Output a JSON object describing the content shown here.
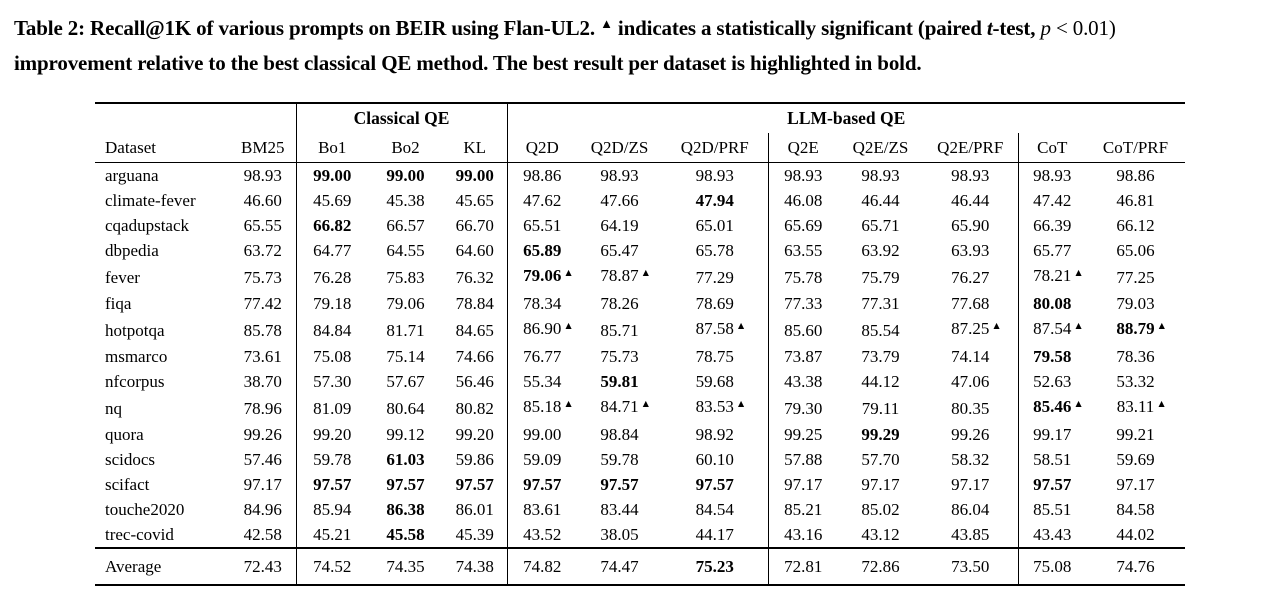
{
  "caption": {
    "parts": [
      {
        "t": "Table 2: Recall@1K of various prompts on BEIR using Flan-UL2. "
      },
      {
        "t": "▲",
        "s": "sup",
        "icon": "significance-triangle-icon"
      },
      {
        "t": " indicates a statistically significant (paired "
      },
      {
        "t": "t",
        "s": "it"
      },
      {
        "t": "-test, "
      },
      {
        "t": "p",
        "s": "it nm"
      },
      {
        "t": " < 0.01)",
        "s": "nm"
      },
      {
        "br": true
      },
      {
        "t": "improvement relative to the best classical QE method. The best result per dataset is highlighted in bold."
      }
    ]
  },
  "table": {
    "significance_marker": "▲",
    "group_headers": [
      {
        "label": "",
        "span": 2,
        "vline": false
      },
      {
        "label": "Classical QE",
        "span": 3,
        "vline": true
      },
      {
        "label": "LLM-based QE",
        "span": 8,
        "vline": true
      }
    ],
    "columns": [
      "Dataset",
      "BM25",
      "Bo1",
      "Bo2",
      "KL",
      "Q2D",
      "Q2D/ZS",
      "Q2D/PRF",
      "Q2E",
      "Q2E/ZS",
      "Q2E/PRF",
      "CoT",
      "CoT/PRF"
    ],
    "vline_cols": [
      2,
      5,
      8,
      11
    ],
    "rows": [
      {
        "name": "arguana",
        "cells": [
          {
            "v": "98.93"
          },
          {
            "v": "99.00",
            "b": 1
          },
          {
            "v": "99.00",
            "b": 1
          },
          {
            "v": "99.00",
            "b": 1
          },
          {
            "v": "98.86"
          },
          {
            "v": "98.93"
          },
          {
            "v": "98.93"
          },
          {
            "v": "98.93"
          },
          {
            "v": "98.93"
          },
          {
            "v": "98.93"
          },
          {
            "v": "98.93"
          },
          {
            "v": "98.86"
          }
        ]
      },
      {
        "name": "climate-fever",
        "cells": [
          {
            "v": "46.60"
          },
          {
            "v": "45.69"
          },
          {
            "v": "45.38"
          },
          {
            "v": "45.65"
          },
          {
            "v": "47.62"
          },
          {
            "v": "47.66"
          },
          {
            "v": "47.94",
            "b": 1
          },
          {
            "v": "46.08"
          },
          {
            "v": "46.44"
          },
          {
            "v": "46.44"
          },
          {
            "v": "47.42"
          },
          {
            "v": "46.81"
          }
        ]
      },
      {
        "name": "cqadupstack",
        "cells": [
          {
            "v": "65.55"
          },
          {
            "v": "66.82",
            "b": 1
          },
          {
            "v": "66.57"
          },
          {
            "v": "66.70"
          },
          {
            "v": "65.51"
          },
          {
            "v": "64.19"
          },
          {
            "v": "65.01"
          },
          {
            "v": "65.69"
          },
          {
            "v": "65.71"
          },
          {
            "v": "65.90"
          },
          {
            "v": "66.39"
          },
          {
            "v": "66.12"
          }
        ]
      },
      {
        "name": "dbpedia",
        "cells": [
          {
            "v": "63.72"
          },
          {
            "v": "64.77"
          },
          {
            "v": "64.55"
          },
          {
            "v": "64.60"
          },
          {
            "v": "65.89",
            "b": 1
          },
          {
            "v": "65.47"
          },
          {
            "v": "65.78"
          },
          {
            "v": "63.55"
          },
          {
            "v": "63.92"
          },
          {
            "v": "63.93"
          },
          {
            "v": "65.77"
          },
          {
            "v": "65.06"
          }
        ]
      },
      {
        "name": "fever",
        "cells": [
          {
            "v": "75.73"
          },
          {
            "v": "76.28"
          },
          {
            "v": "75.83"
          },
          {
            "v": "76.32"
          },
          {
            "v": "79.06",
            "b": 1,
            "sig": 1
          },
          {
            "v": "78.87",
            "sig": 1
          },
          {
            "v": "77.29"
          },
          {
            "v": "75.78"
          },
          {
            "v": "75.79"
          },
          {
            "v": "76.27"
          },
          {
            "v": "78.21",
            "sig": 1
          },
          {
            "v": "77.25"
          }
        ]
      },
      {
        "name": "fiqa",
        "cells": [
          {
            "v": "77.42"
          },
          {
            "v": "79.18"
          },
          {
            "v": "79.06"
          },
          {
            "v": "78.84"
          },
          {
            "v": "78.34"
          },
          {
            "v": "78.26"
          },
          {
            "v": "78.69"
          },
          {
            "v": "77.33"
          },
          {
            "v": "77.31"
          },
          {
            "v": "77.68"
          },
          {
            "v": "80.08",
            "b": 1
          },
          {
            "v": "79.03"
          }
        ]
      },
      {
        "name": "hotpotqa",
        "cells": [
          {
            "v": "85.78"
          },
          {
            "v": "84.84"
          },
          {
            "v": "81.71"
          },
          {
            "v": "84.65"
          },
          {
            "v": "86.90",
            "sig": 1
          },
          {
            "v": "85.71"
          },
          {
            "v": "87.58",
            "sig": 1
          },
          {
            "v": "85.60"
          },
          {
            "v": "85.54"
          },
          {
            "v": "87.25",
            "sig": 1
          },
          {
            "v": "87.54",
            "sig": 1
          },
          {
            "v": "88.79",
            "b": 1,
            "sig": 1
          }
        ]
      },
      {
        "name": "msmarco",
        "cells": [
          {
            "v": "73.61"
          },
          {
            "v": "75.08"
          },
          {
            "v": "75.14"
          },
          {
            "v": "74.66"
          },
          {
            "v": "76.77"
          },
          {
            "v": "75.73"
          },
          {
            "v": "78.75"
          },
          {
            "v": "73.87"
          },
          {
            "v": "73.79"
          },
          {
            "v": "74.14"
          },
          {
            "v": "79.58",
            "b": 1
          },
          {
            "v": "78.36"
          }
        ]
      },
      {
        "name": "nfcorpus",
        "cells": [
          {
            "v": "38.70"
          },
          {
            "v": "57.30"
          },
          {
            "v": "57.67"
          },
          {
            "v": "56.46"
          },
          {
            "v": "55.34"
          },
          {
            "v": "59.81",
            "b": 1
          },
          {
            "v": "59.68"
          },
          {
            "v": "43.38"
          },
          {
            "v": "44.12"
          },
          {
            "v": "47.06"
          },
          {
            "v": "52.63"
          },
          {
            "v": "53.32"
          }
        ]
      },
      {
        "name": "nq",
        "cells": [
          {
            "v": "78.96"
          },
          {
            "v": "81.09"
          },
          {
            "v": "80.64"
          },
          {
            "v": "80.82"
          },
          {
            "v": "85.18",
            "sig": 1
          },
          {
            "v": "84.71",
            "sig": 1
          },
          {
            "v": "83.53",
            "sig": 1
          },
          {
            "v": "79.30"
          },
          {
            "v": "79.11"
          },
          {
            "v": "80.35"
          },
          {
            "v": "85.46",
            "b": 1,
            "sig": 1
          },
          {
            "v": "83.11",
            "sig": 1
          }
        ]
      },
      {
        "name": "quora",
        "cells": [
          {
            "v": "99.26"
          },
          {
            "v": "99.20"
          },
          {
            "v": "99.12"
          },
          {
            "v": "99.20"
          },
          {
            "v": "99.00"
          },
          {
            "v": "98.84"
          },
          {
            "v": "98.92"
          },
          {
            "v": "99.25"
          },
          {
            "v": "99.29",
            "b": 1
          },
          {
            "v": "99.26"
          },
          {
            "v": "99.17"
          },
          {
            "v": "99.21"
          }
        ]
      },
      {
        "name": "scidocs",
        "cells": [
          {
            "v": "57.46"
          },
          {
            "v": "59.78"
          },
          {
            "v": "61.03",
            "b": 1
          },
          {
            "v": "59.86"
          },
          {
            "v": "59.09"
          },
          {
            "v": "59.78"
          },
          {
            "v": "60.10"
          },
          {
            "v": "57.88"
          },
          {
            "v": "57.70"
          },
          {
            "v": "58.32"
          },
          {
            "v": "58.51"
          },
          {
            "v": "59.69"
          }
        ]
      },
      {
        "name": "scifact",
        "cells": [
          {
            "v": "97.17"
          },
          {
            "v": "97.57",
            "b": 1
          },
          {
            "v": "97.57",
            "b": 1
          },
          {
            "v": "97.57",
            "b": 1
          },
          {
            "v": "97.57",
            "b": 1
          },
          {
            "v": "97.57",
            "b": 1
          },
          {
            "v": "97.57",
            "b": 1
          },
          {
            "v": "97.17"
          },
          {
            "v": "97.17"
          },
          {
            "v": "97.17"
          },
          {
            "v": "97.57",
            "b": 1
          },
          {
            "v": "97.17"
          }
        ]
      },
      {
        "name": "touche2020",
        "cells": [
          {
            "v": "84.96"
          },
          {
            "v": "85.94"
          },
          {
            "v": "86.38",
            "b": 1
          },
          {
            "v": "86.01"
          },
          {
            "v": "83.61"
          },
          {
            "v": "83.44"
          },
          {
            "v": "84.54"
          },
          {
            "v": "85.21"
          },
          {
            "v": "85.02"
          },
          {
            "v": "86.04"
          },
          {
            "v": "85.51"
          },
          {
            "v": "84.58"
          }
        ]
      },
      {
        "name": "trec-covid",
        "cells": [
          {
            "v": "42.58"
          },
          {
            "v": "45.21"
          },
          {
            "v": "45.58",
            "b": 1
          },
          {
            "v": "45.39"
          },
          {
            "v": "43.52"
          },
          {
            "v": "38.05"
          },
          {
            "v": "44.17"
          },
          {
            "v": "43.16"
          },
          {
            "v": "43.12"
          },
          {
            "v": "43.85"
          },
          {
            "v": "43.43"
          },
          {
            "v": "44.02"
          }
        ]
      }
    ],
    "average_row": {
      "name": "Average",
      "cells": [
        {
          "v": "72.43"
        },
        {
          "v": "74.52"
        },
        {
          "v": "74.35"
        },
        {
          "v": "74.38"
        },
        {
          "v": "74.82"
        },
        {
          "v": "74.47"
        },
        {
          "v": "75.23",
          "b": 1
        },
        {
          "v": "72.81"
        },
        {
          "v": "72.86"
        },
        {
          "v": "73.50"
        },
        {
          "v": "75.08"
        },
        {
          "v": "74.76"
        }
      ]
    }
  }
}
